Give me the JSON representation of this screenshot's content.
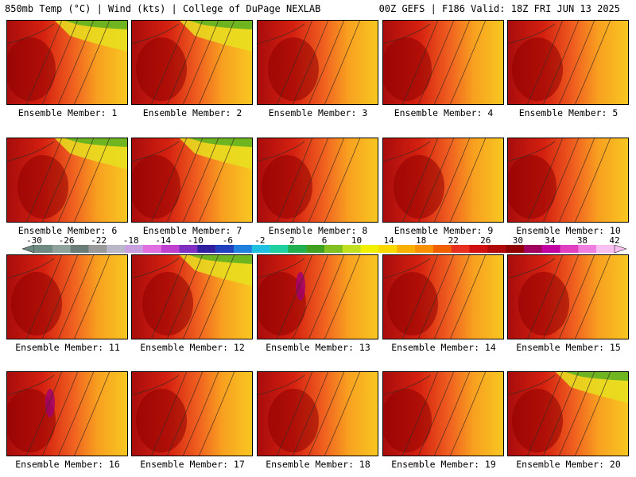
{
  "header": {
    "left_title": "850mb Temp (°C) | Wind (kts) | College of DuPage NEXLAB",
    "right_title": "00Z GEFS | F186 Valid: 18Z FRI JUN 13 2025"
  },
  "panels": [
    {
      "label": "Ensemble Member: 1"
    },
    {
      "label": "Ensemble Member: 2"
    },
    {
      "label": "Ensemble Member: 3"
    },
    {
      "label": "Ensemble Member: 4"
    },
    {
      "label": "Ensemble Member: 5"
    },
    {
      "label": "Ensemble Member: 6"
    },
    {
      "label": "Ensemble Member: 7"
    },
    {
      "label": "Ensemble Member: 8"
    },
    {
      "label": "Ensemble Member: 9"
    },
    {
      "label": "Ensemble Member: 10"
    },
    {
      "label": "Ensemble Member: 11"
    },
    {
      "label": "Ensemble Member: 12"
    },
    {
      "label": "Ensemble Member: 13"
    },
    {
      "label": "Ensemble Member: 14"
    },
    {
      "label": "Ensemble Member: 15"
    },
    {
      "label": "Ensemble Member: 16"
    },
    {
      "label": "Ensemble Member: 17"
    },
    {
      "label": "Ensemble Member: 18"
    },
    {
      "label": "Ensemble Member: 19"
    },
    {
      "label": "Ensemble Member: 20"
    }
  ],
  "colorbar": {
    "ticks": [
      "-30",
      "-26",
      "-22",
      "-18",
      "-14",
      "-10",
      "-6",
      "-2",
      "2",
      "6",
      "10",
      "14",
      "18",
      "22",
      "26",
      "30",
      "34",
      "38",
      "42"
    ],
    "colors": [
      "#6f8a82",
      "#8ea39c",
      "#6b7d78",
      "#9a9a9a",
      "#b8b8c8",
      "#c8a0e0",
      "#e070e0",
      "#c040d0",
      "#8030c0",
      "#3020a0",
      "#2040c0",
      "#2080e0",
      "#20c0e0",
      "#20d0a0",
      "#20b050",
      "#40a020",
      "#80c020",
      "#c0e020",
      "#f0f000",
      "#f8d800",
      "#f8b000",
      "#f89000",
      "#f06000",
      "#e83020",
      "#d01010",
      "#b00808",
      "#900000",
      "#a00060",
      "#c000a0",
      "#e040c0",
      "#f080e0",
      "#f8c0f0"
    ]
  }
}
